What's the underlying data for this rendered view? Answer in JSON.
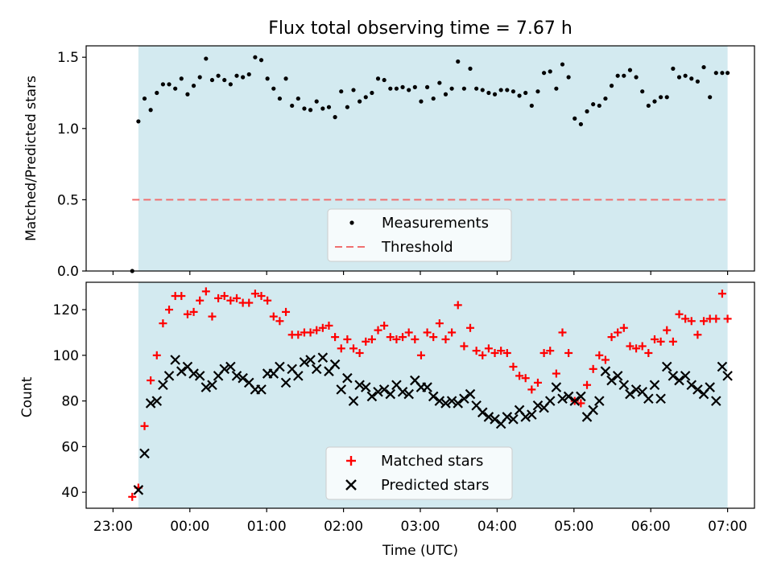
{
  "chart_data": [
    {
      "type": "scatter",
      "title": "Flux total observing time = 7.67 h",
      "ylabel": "Matched/Predicted stars",
      "xlabel": "",
      "x_unit": "hours since 23:00 UTC",
      "xlim": [
        -0.35,
        8.35
      ],
      "ylim": [
        0.0,
        1.58
      ],
      "yticks": [
        0.0,
        0.5,
        1.0,
        1.5
      ],
      "ytick_labels": [
        "0.0",
        "0.5",
        "1.0",
        "1.5"
      ],
      "shaded_region": {
        "start": 0.33,
        "end": 8.0,
        "color": "#d3eaf0"
      },
      "threshold": {
        "label": "Threshold",
        "value": 0.5,
        "x_start": 0.25,
        "x_end": 8.0,
        "color": "#f07070"
      },
      "legend": {
        "position": "lower-center",
        "entries": [
          "Measurements",
          "Threshold"
        ]
      },
      "series": [
        {
          "name": "Measurements",
          "color": "#000000",
          "marker": "dot",
          "x": [
            0.25,
            0.33,
            0.41,
            0.49,
            0.57,
            0.65,
            0.73,
            0.81,
            0.89,
            0.97,
            1.05,
            1.13,
            1.21,
            1.29,
            1.37,
            1.45,
            1.53,
            1.61,
            1.69,
            1.77,
            1.85,
            1.93,
            2.01,
            2.09,
            2.17,
            2.25,
            2.33,
            2.41,
            2.49,
            2.57,
            2.65,
            2.73,
            2.81,
            2.89,
            2.97,
            3.05,
            3.13,
            3.21,
            3.29,
            3.37,
            3.45,
            3.53,
            3.61,
            3.69,
            3.77,
            3.85,
            3.93,
            4.01,
            4.09,
            4.17,
            4.25,
            4.33,
            4.41,
            4.49,
            4.57,
            4.65,
            4.73,
            4.81,
            4.89,
            4.97,
            5.05,
            5.13,
            5.21,
            5.29,
            5.37,
            5.45,
            5.53,
            5.61,
            5.69,
            5.77,
            5.85,
            5.93,
            6.01,
            6.09,
            6.17,
            6.25,
            6.33,
            6.41,
            6.49,
            6.57,
            6.65,
            6.73,
            6.81,
            6.89,
            6.97,
            7.05,
            7.13,
            7.21,
            7.29,
            7.37,
            7.45,
            7.53,
            7.61,
            7.69,
            7.77,
            7.85,
            7.93,
            8.0
          ],
          "y": [
            0.0,
            1.05,
            1.21,
            1.13,
            1.25,
            1.31,
            1.31,
            1.28,
            1.35,
            1.24,
            1.3,
            1.36,
            1.49,
            1.34,
            1.37,
            1.34,
            1.31,
            1.37,
            1.36,
            1.38,
            1.5,
            1.48,
            1.35,
            1.28,
            1.21,
            1.35,
            1.16,
            1.21,
            1.14,
            1.13,
            1.19,
            1.14,
            1.15,
            1.08,
            1.26,
            1.15,
            1.27,
            1.19,
            1.22,
            1.25,
            1.35,
            1.34,
            1.28,
            1.28,
            1.29,
            1.27,
            1.29,
            1.19,
            1.29,
            1.21,
            1.32,
            1.24,
            1.28,
            1.47,
            1.28,
            1.42,
            1.28,
            1.27,
            1.25,
            1.24,
            1.27,
            1.27,
            1.26,
            1.23,
            1.25,
            1.16,
            1.26,
            1.39,
            1.4,
            1.28,
            1.45,
            1.36,
            1.07,
            1.03,
            1.12,
            1.17,
            1.16,
            1.21,
            1.3,
            1.37,
            1.37,
            1.41,
            1.36,
            1.26,
            1.16,
            1.19,
            1.22,
            1.22,
            1.42,
            1.36,
            1.37,
            1.35,
            1.33,
            1.43,
            1.22,
            1.39,
            1.39,
            1.39
          ]
        }
      ]
    },
    {
      "type": "scatter",
      "title": "",
      "xlabel": "Time (UTC)",
      "ylabel": "Count",
      "x_unit": "hours since 23:00 UTC",
      "xlim": [
        -0.35,
        8.35
      ],
      "ylim": [
        33,
        132
      ],
      "xticks": [
        0,
        1,
        2,
        3,
        4,
        5,
        6,
        7,
        8
      ],
      "xtick_labels": [
        "23:00",
        "00:00",
        "01:00",
        "02:00",
        "03:00",
        "04:00",
        "05:00",
        "06:00",
        "07:00"
      ],
      "yticks": [
        40,
        60,
        80,
        100,
        120
      ],
      "ytick_labels": [
        "40",
        "60",
        "80",
        "100",
        "120"
      ],
      "shaded_region": {
        "start": 0.33,
        "end": 8.0,
        "color": "#d3eaf0"
      },
      "legend": {
        "position": "lower-center",
        "entries": [
          "Matched stars",
          "Predicted stars"
        ]
      },
      "series": [
        {
          "name": "Matched stars",
          "color": "#ff0000",
          "marker": "plus",
          "x": [
            0.25,
            0.33,
            0.41,
            0.49,
            0.57,
            0.65,
            0.73,
            0.81,
            0.89,
            0.97,
            1.05,
            1.13,
            1.21,
            1.29,
            1.37,
            1.45,
            1.53,
            1.61,
            1.69,
            1.77,
            1.85,
            1.93,
            2.01,
            2.09,
            2.17,
            2.25,
            2.33,
            2.41,
            2.49,
            2.57,
            2.65,
            2.73,
            2.81,
            2.89,
            2.97,
            3.05,
            3.13,
            3.21,
            3.29,
            3.37,
            3.45,
            3.53,
            3.61,
            3.69,
            3.77,
            3.85,
            3.93,
            4.01,
            4.09,
            4.17,
            4.25,
            4.33,
            4.41,
            4.49,
            4.57,
            4.65,
            4.73,
            4.81,
            4.89,
            4.97,
            5.05,
            5.13,
            5.21,
            5.29,
            5.37,
            5.45,
            5.53,
            5.61,
            5.69,
            5.77,
            5.85,
            5.93,
            6.01,
            6.09,
            6.17,
            6.25,
            6.33,
            6.41,
            6.49,
            6.57,
            6.65,
            6.73,
            6.81,
            6.89,
            6.97,
            7.05,
            7.13,
            7.21,
            7.29,
            7.37,
            7.45,
            7.53,
            7.61,
            7.69,
            7.77,
            7.85,
            7.93,
            8.0
          ],
          "y": [
            38,
            42,
            69,
            89,
            100,
            114,
            120,
            126,
            126,
            118,
            119,
            124,
            128,
            117,
            125,
            126,
            124,
            125,
            123,
            123,
            127,
            126,
            124,
            117,
            115,
            119,
            109,
            109,
            110,
            110,
            111,
            112,
            113,
            108,
            103,
            107,
            103,
            101,
            106,
            107,
            111,
            113,
            108,
            107,
            108,
            110,
            107,
            100,
            110,
            108,
            114,
            107,
            110,
            122,
            104,
            112,
            102,
            100,
            103,
            101,
            102,
            101,
            95,
            91,
            90,
            85,
            88,
            101,
            102,
            92,
            110,
            101,
            80,
            79,
            87,
            94,
            100,
            98,
            108,
            110,
            112,
            104,
            103,
            104,
            101,
            107,
            106,
            111,
            106,
            118,
            116,
            115,
            109,
            115,
            116,
            116,
            127,
            116
          ]
        },
        {
          "name": "Predicted stars",
          "color": "#000000",
          "marker": "x",
          "x": [
            0.33,
            0.41,
            0.49,
            0.57,
            0.65,
            0.73,
            0.81,
            0.89,
            0.97,
            1.05,
            1.13,
            1.21,
            1.29,
            1.37,
            1.45,
            1.53,
            1.61,
            1.69,
            1.77,
            1.85,
            1.93,
            2.01,
            2.09,
            2.17,
            2.25,
            2.33,
            2.41,
            2.49,
            2.57,
            2.65,
            2.73,
            2.81,
            2.89,
            2.97,
            3.05,
            3.13,
            3.21,
            3.29,
            3.37,
            3.45,
            3.53,
            3.61,
            3.69,
            3.77,
            3.85,
            3.93,
            4.01,
            4.09,
            4.17,
            4.25,
            4.33,
            4.41,
            4.49,
            4.57,
            4.65,
            4.73,
            4.81,
            4.89,
            4.97,
            5.05,
            5.13,
            5.21,
            5.29,
            5.37,
            5.45,
            5.53,
            5.61,
            5.69,
            5.77,
            5.85,
            5.93,
            6.01,
            6.09,
            6.17,
            6.25,
            6.33,
            6.41,
            6.49,
            6.57,
            6.65,
            6.73,
            6.81,
            6.89,
            6.97,
            7.05,
            7.13,
            7.21,
            7.29,
            7.37,
            7.45,
            7.53,
            7.61,
            7.69,
            7.77,
            7.85,
            7.93,
            8.0
          ],
          "y": [
            41,
            57,
            79,
            80,
            87,
            91,
            98,
            93,
            95,
            92,
            91,
            86,
            87,
            91,
            94,
            95,
            91,
            90,
            88,
            85,
            85,
            92,
            92,
            95,
            88,
            94,
            91,
            97,
            98,
            94,
            99,
            93,
            96,
            85,
            90,
            80,
            87,
            86,
            82,
            84,
            85,
            83,
            87,
            84,
            83,
            89,
            86,
            86,
            82,
            80,
            79,
            80,
            79,
            81,
            83,
            78,
            75,
            73,
            72,
            70,
            73,
            72,
            76,
            73,
            74,
            78,
            77,
            80,
            86,
            81,
            82,
            80,
            82,
            73,
            76,
            80,
            93,
            89,
            91,
            87,
            83,
            85,
            84,
            81,
            87,
            81,
            95,
            91,
            89,
            91,
            87,
            85,
            83,
            86,
            80,
            95,
            91
          ]
        }
      ]
    }
  ]
}
